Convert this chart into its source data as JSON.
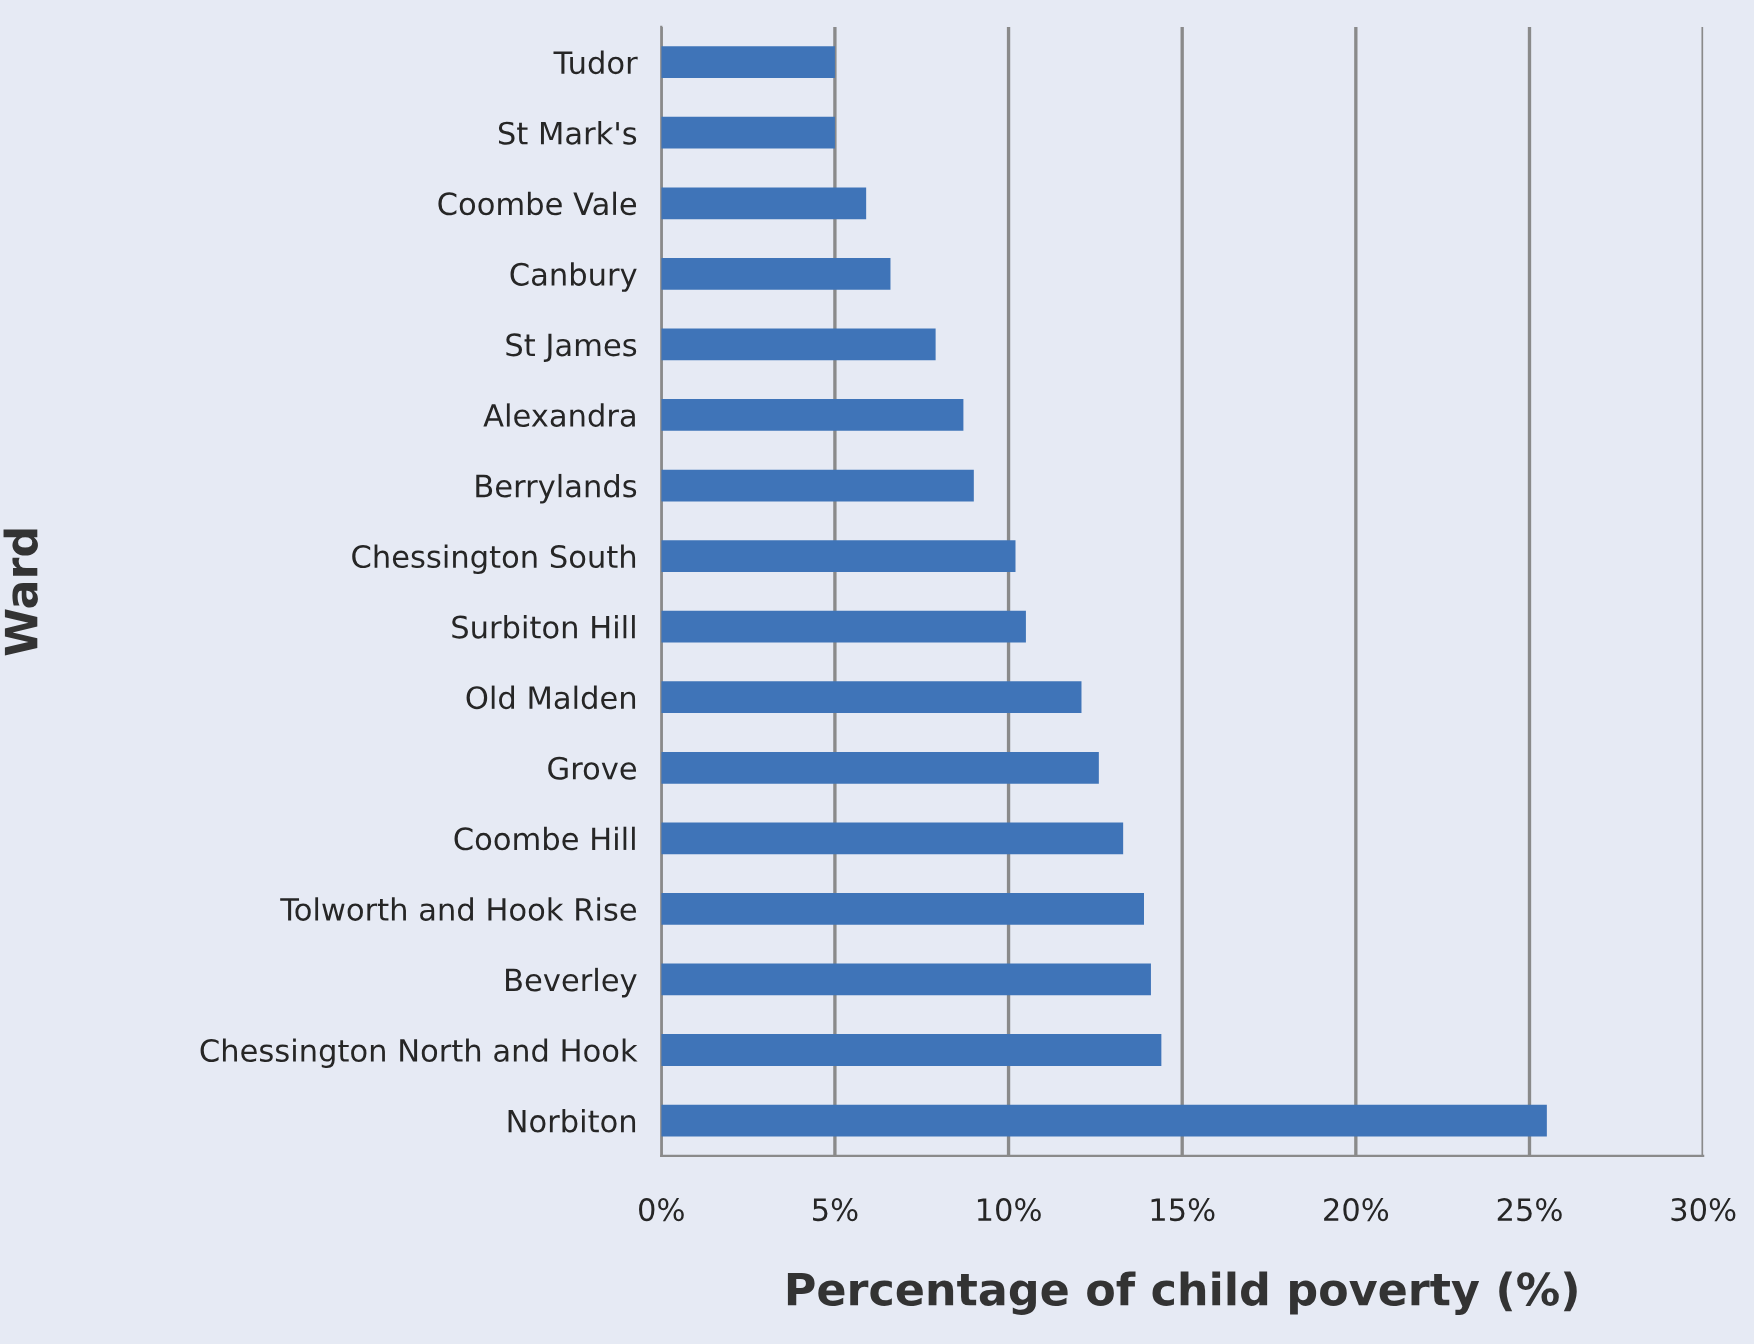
{
  "chart_data": {
    "type": "bar",
    "orientation": "horizontal",
    "xlabel": "Percentage of child poverty (%)",
    "ylabel": "Ward",
    "categories": [
      "Tudor",
      "St Mark's",
      "Coombe Vale",
      "Canbury",
      "St James",
      "Alexandra",
      "Berrylands",
      "Chessington South",
      "Surbiton Hill",
      "Old Malden",
      "Grove",
      "Coombe Hill",
      "Tolworth and Hook Rise",
      "Beverley",
      "Chessington North and Hook",
      "Norbiton"
    ],
    "values": [
      5.0,
      5.0,
      5.9,
      6.6,
      7.9,
      8.7,
      9.0,
      10.2,
      10.5,
      12.1,
      12.6,
      13.3,
      13.9,
      14.1,
      14.4,
      25.5
    ],
    "color": "#3f74b8",
    "xlim": [
      0,
      30
    ],
    "xticks": [
      {
        "value": 0,
        "label": "0%"
      },
      {
        "value": 5,
        "label": "5%"
      },
      {
        "value": 10,
        "label": "10%"
      },
      {
        "value": 15,
        "label": "15%"
      },
      {
        "value": 20,
        "label": "20%"
      },
      {
        "value": 25,
        "label": "25%"
      },
      {
        "value": 30,
        "label": "30%"
      }
    ],
    "grid": "x"
  }
}
